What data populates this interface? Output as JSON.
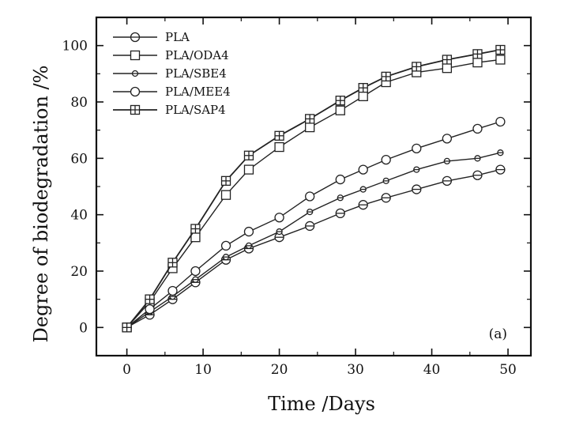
{
  "chart_data": {
    "type": "line",
    "title": "",
    "xlabel": "Time /Days",
    "ylabel": "Degree of biodegradation /%",
    "xlim": [
      -4,
      53
    ],
    "ylim": [
      -10,
      110
    ],
    "xticks": [
      0,
      10,
      20,
      30,
      40,
      50
    ],
    "yticks": [
      0,
      20,
      40,
      60,
      80,
      100
    ],
    "grid": false,
    "legend_position": "top-left",
    "panel_label": "(a)",
    "series": [
      {
        "name": "PLA",
        "marker": "circle-hline",
        "x": [
          0,
          3,
          6,
          9,
          13,
          16,
          20,
          24,
          28,
          31,
          34,
          38,
          42,
          46,
          49
        ],
        "y": [
          0,
          4.5,
          10,
          16,
          24,
          28,
          32,
          36,
          40.5,
          43.5,
          46,
          49,
          52,
          54,
          56
        ]
      },
      {
        "name": "PLA/ODA4",
        "marker": "square-open",
        "x": [
          0,
          3,
          6,
          9,
          13,
          16,
          20,
          24,
          28,
          31,
          34,
          38,
          42,
          46,
          49
        ],
        "y": [
          0,
          9,
          21,
          32,
          47,
          56,
          64,
          71,
          77,
          82,
          87,
          90.5,
          92,
          94,
          95
        ]
      },
      {
        "name": "PLA/SBE4",
        "marker": "circle-small",
        "x": [
          0,
          3,
          6,
          9,
          13,
          16,
          20,
          24,
          28,
          31,
          34,
          38,
          42,
          46,
          49
        ],
        "y": [
          0,
          5.5,
          11,
          17,
          25,
          29,
          34,
          41,
          46,
          49,
          52,
          56,
          59,
          60,
          62
        ]
      },
      {
        "name": "PLA/MEE4",
        "marker": "circle-open",
        "x": [
          0,
          3,
          6,
          9,
          13,
          16,
          20,
          24,
          28,
          31,
          34,
          38,
          42,
          46,
          49
        ],
        "y": [
          0,
          6.5,
          13,
          20,
          29,
          34,
          39,
          46.5,
          52.5,
          56,
          59.5,
          63.5,
          67,
          70.5,
          73
        ]
      },
      {
        "name": "PLA/SAP4",
        "marker": "square-cross",
        "x": [
          0,
          3,
          6,
          9,
          13,
          16,
          20,
          24,
          28,
          31,
          34,
          38,
          42,
          46,
          49
        ],
        "y": [
          0,
          10,
          23,
          35,
          52,
          61,
          68,
          74,
          80.5,
          85,
          89,
          92.5,
          95,
          97,
          98.5
        ]
      }
    ]
  }
}
